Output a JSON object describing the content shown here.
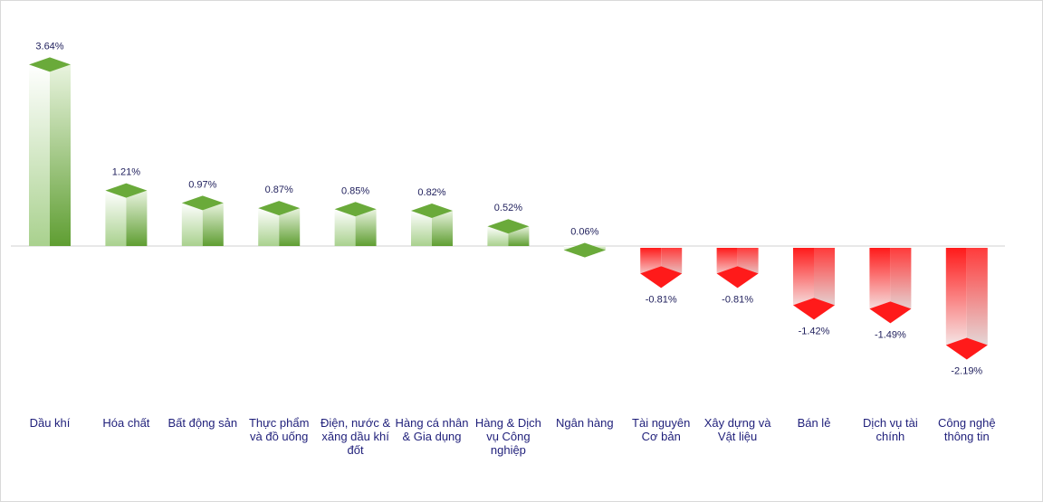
{
  "chart_data": {
    "type": "bar",
    "categories": [
      "Dầu khí",
      "Hóa chất",
      "Bất động sản",
      "Thực phẩm và đồ uống",
      "Điện, nước & xăng dầu khí đốt",
      "Hàng cá nhân & Gia dụng",
      "Hàng & Dịch vụ Công nghiệp",
      "Ngân hàng",
      "Tài nguyên Cơ bản",
      "Xây dựng và Vật liệu",
      "Bán lẻ",
      "Dịch vụ tài chính",
      "Công nghệ thông tin"
    ],
    "category_lines": [
      [
        "Dầu khí"
      ],
      [
        "Hóa chất"
      ],
      [
        "Bất động sản"
      ],
      [
        "Thực phẩm",
        "và đồ uống"
      ],
      [
        "Điện, nước &",
        "xăng dầu khí",
        "đốt"
      ],
      [
        "Hàng cá nhân",
        "& Gia dụng"
      ],
      [
        "Hàng & Dịch",
        "vụ Công",
        "nghiệp"
      ],
      [
        "Ngân hàng"
      ],
      [
        "Tài nguyên",
        "Cơ bản"
      ],
      [
        "Xây dựng và",
        "Vật liệu"
      ],
      [
        "Bán lẻ"
      ],
      [
        "Dịch vụ tài",
        "chính"
      ],
      [
        "Công nghệ",
        "thông tin"
      ]
    ],
    "values": [
      3.64,
      1.21,
      0.97,
      0.87,
      0.85,
      0.82,
      0.52,
      0.06,
      -0.81,
      -0.81,
      -1.42,
      -1.49,
      -2.19
    ],
    "value_labels": [
      "3.64%",
      "1.21%",
      "0.97%",
      "0.87%",
      "0.85%",
      "0.82%",
      "0.52%",
      "0.06%",
      "-0.81%",
      "-0.81%",
      "-1.42%",
      "-1.49%",
      "-2.19%"
    ],
    "title": "",
    "xlabel": "",
    "ylabel": "",
    "ylim": [
      -2.2,
      3.7
    ],
    "grid": false,
    "legend": "none",
    "colors": {
      "positive": "#6aaa3a",
      "positive_light": "#f2f9ec",
      "negative": "#ff2020",
      "negative_light": "#f7f7f7",
      "label_text": "#1f1f5c",
      "category_text": "#1f1f7a",
      "axis_line": "#d0d0d0"
    }
  }
}
